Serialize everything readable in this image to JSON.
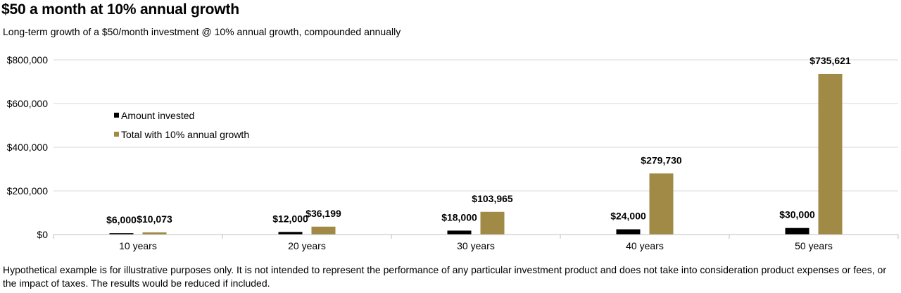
{
  "title": "$50 a month at 10% annual growth",
  "subtitle": "Long-term growth of a $50/month investment @ 10% annual growth, compounded annually",
  "footnote": "Hypothetical example is for illustrative purposes only. It is not intended to represent the performance of any particular investment product and does not take into consideration product expenses or fees, or the impact of taxes. The results would be reduced if included.",
  "chart_data": {
    "type": "bar",
    "categories": [
      "10 years",
      "20 years",
      "30 years",
      "40 years",
      "50 years"
    ],
    "series": [
      {
        "name": "Amount invested",
        "color": "#000000",
        "values": [
          6000,
          12000,
          18000,
          24000,
          30000
        ],
        "labels": [
          "$6,000",
          "$12,000",
          "$18,000",
          "$24,000",
          "$30,000"
        ]
      },
      {
        "name": "Total with 10% annual growth",
        "color": "#A08A45",
        "values": [
          10073,
          36199,
          103965,
          279730,
          735621
        ],
        "labels": [
          "$10,073",
          "$36,199",
          "$103,965",
          "$279,730",
          "$735,621"
        ]
      }
    ],
    "ylim": [
      0,
      800000
    ],
    "yticks": [
      0,
      200000,
      400000,
      600000,
      800000
    ],
    "ytick_labels": [
      "$0",
      "$200,000",
      "$400,000",
      "$600,000",
      "$800,000"
    ],
    "grid": true,
    "legend": "upper-left"
  }
}
